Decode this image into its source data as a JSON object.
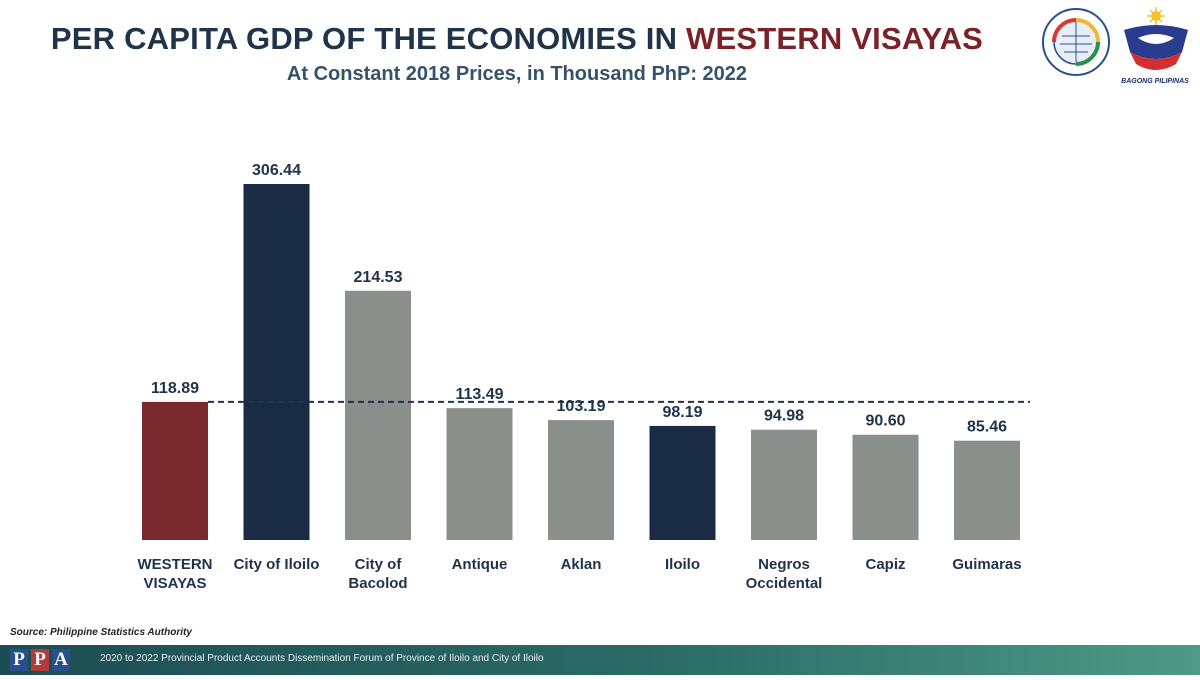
{
  "header": {
    "title_part1": "PER CAPITA GDP OF THE ECONOMIES IN",
    "title_part2": "WESTERN VISAYAS",
    "subtitle": "At Constant 2018 Prices, in Thousand PhP: 2022",
    "logo_right_text": "BAGONG PILIPINAS"
  },
  "colors": {
    "region": "#7a2a2e",
    "highlight": "#1a2b44",
    "default": "#8a8f8b",
    "label": "#1f3349",
    "reference_line": "#1f3349"
  },
  "chart_data": {
    "type": "bar",
    "categories": [
      [
        "WESTERN",
        "VISAYAS"
      ],
      [
        "City of Iloilo"
      ],
      [
        "City of",
        "Bacolod"
      ],
      [
        "Antique"
      ],
      [
        "Aklan"
      ],
      [
        "Iloilo"
      ],
      [
        "Negros",
        "Occidental"
      ],
      [
        "Capiz"
      ],
      [
        "Guimaras"
      ]
    ],
    "values": [
      118.89,
      306.44,
      214.53,
      113.49,
      103.19,
      98.19,
      94.98,
      90.6,
      85.46
    ],
    "value_labels": [
      "118.89",
      "306.44",
      "214.53",
      "113.49",
      "103.19",
      "98.19",
      "94.98",
      "90.60",
      "85.46"
    ],
    "bar_colors": [
      "region",
      "highlight",
      "default",
      "default",
      "default",
      "highlight",
      "default",
      "default",
      "default"
    ],
    "reference_line": {
      "value": 118.89,
      "style": "dashed"
    },
    "ylim": [
      0,
      306.44
    ],
    "grid": false,
    "title": "PER CAPITA GDP OF THE ECONOMIES IN WESTERN VISAYAS",
    "subtitle": "At Constant 2018 Prices, in Thousand PhP: 2022"
  },
  "footer": {
    "source": "Source: Philippine Statistics Authority",
    "ppa_letters": [
      "P",
      "P",
      "A"
    ],
    "forum_text": "2020 to 2022 Provincial Product Accounts Dissemination Forum of Province of Iloilo and City of Iloilo"
  }
}
